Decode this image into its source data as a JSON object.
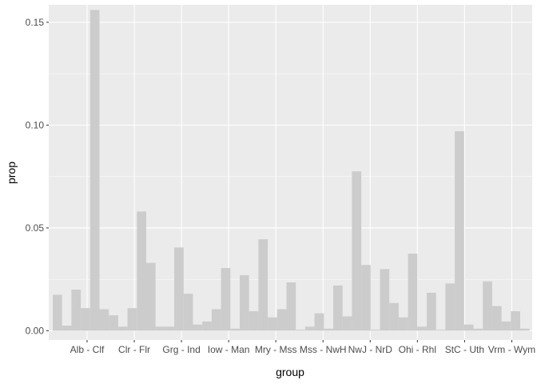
{
  "chart_data": {
    "type": "bar",
    "xlabel": "group",
    "ylabel": "prop",
    "ylim": [
      -0.0045,
      0.1585
    ],
    "y_ticks": [
      0.0,
      0.05,
      0.1,
      0.15
    ],
    "y_tick_labels": [
      "0.00",
      "0.05",
      "0.10",
      "0.15"
    ],
    "x_tick_labels": [
      "Alb - Clf",
      "Clr - Flr",
      "Grg - Ind",
      "Iow - Man",
      "Mry - Mss",
      "Mss - NwH",
      "NwJ - NrD",
      "Ohi - Rhl",
      "StC - Uth",
      "Vrm - Wym"
    ],
    "values": [
      0.0175,
      0.0025,
      0.02,
      0.011,
      0.156,
      0.0105,
      0.0075,
      0.002,
      0.011,
      0.058,
      0.033,
      0.002,
      0.002,
      0.0405,
      0.018,
      0.003,
      0.0045,
      0.0105,
      0.0305,
      0.001,
      0.027,
      0.0095,
      0.0445,
      0.0065,
      0.0105,
      0.0235,
      0.0005,
      0.002,
      0.0085,
      0.001,
      0.022,
      0.007,
      0.0775,
      0.032,
      0.0005,
      0.03,
      0.0135,
      0.0065,
      0.0375,
      0.002,
      0.0185,
      0.0005,
      0.023,
      0.097,
      0.003,
      0.001,
      0.024,
      0.012,
      0.0045,
      0.0095,
      0.001
    ],
    "grid": true,
    "legend": "none",
    "colors": {
      "bar": "#cccccc",
      "panel": "#ebebeb",
      "grid_major": "#ffffff",
      "tick_text": "#4d4d4d",
      "axis_title": "#000000"
    }
  }
}
